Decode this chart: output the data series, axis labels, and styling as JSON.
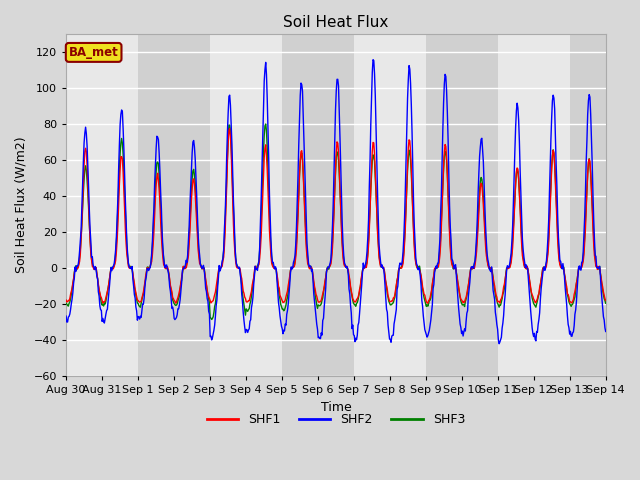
{
  "title": "Soil Heat Flux",
  "ylabel": "Soil Heat Flux (W/m2)",
  "xlabel": "Time",
  "ylim": [
    -60,
    130
  ],
  "yticks": [
    -60,
    -40,
    -20,
    0,
    20,
    40,
    60,
    80,
    100,
    120
  ],
  "bg_color": "#d8d8d8",
  "plot_bg_color": "#d8d8d8",
  "band_light": "#e8e8e8",
  "band_dark": "#d0d0d0",
  "grid_color": "#ffffff",
  "annotation_text": "BA_met",
  "annotation_bg": "#f0e020",
  "annotation_border": "#8B0000",
  "series_colors": {
    "SHF1": "red",
    "SHF2": "blue",
    "SHF3": "green"
  },
  "series_linewidth": 1.0,
  "n_days": 15,
  "x_labels": [
    "Aug 30",
    "Aug 31",
    "Sep 1",
    "Sep 2",
    "Sep 3",
    "Sep 4",
    "Sep 5",
    "Sep 6",
    "Sep 7",
    "Sep 8",
    "Sep 9",
    "Sep 10",
    "Sep 11",
    "Sep 12",
    "Sep 13",
    "Sep 14"
  ],
  "shf1_day_peaks": [
    67,
    63,
    52,
    50,
    78,
    68,
    65,
    70,
    70,
    72,
    69,
    47,
    56,
    65,
    61
  ],
  "shf2_day_peaks": [
    78,
    89,
    74,
    70,
    96,
    113,
    103,
    106,
    116,
    113,
    108,
    72,
    91,
    97,
    96
  ],
  "shf3_day_peaks": [
    56,
    72,
    60,
    55,
    80,
    80,
    64,
    65,
    63,
    65,
    65,
    50,
    55,
    65,
    60
  ],
  "shf1_night_vals": [
    -20,
    -20,
    -20,
    -20,
    -20,
    -20,
    -20,
    -20,
    -20,
    -20,
    -20,
    -20,
    -20,
    -20,
    -20
  ],
  "shf2_night_vals": [
    -30,
    -32,
    -30,
    -30,
    -42,
    -38,
    -38,
    -42,
    -42,
    -42,
    -40,
    -38,
    -44,
    -40,
    -40
  ],
  "shf3_night_vals": [
    -22,
    -22,
    -22,
    -22,
    -30,
    -25,
    -25,
    -22,
    -22,
    -22,
    -22,
    -22,
    -22,
    -22,
    -22
  ]
}
